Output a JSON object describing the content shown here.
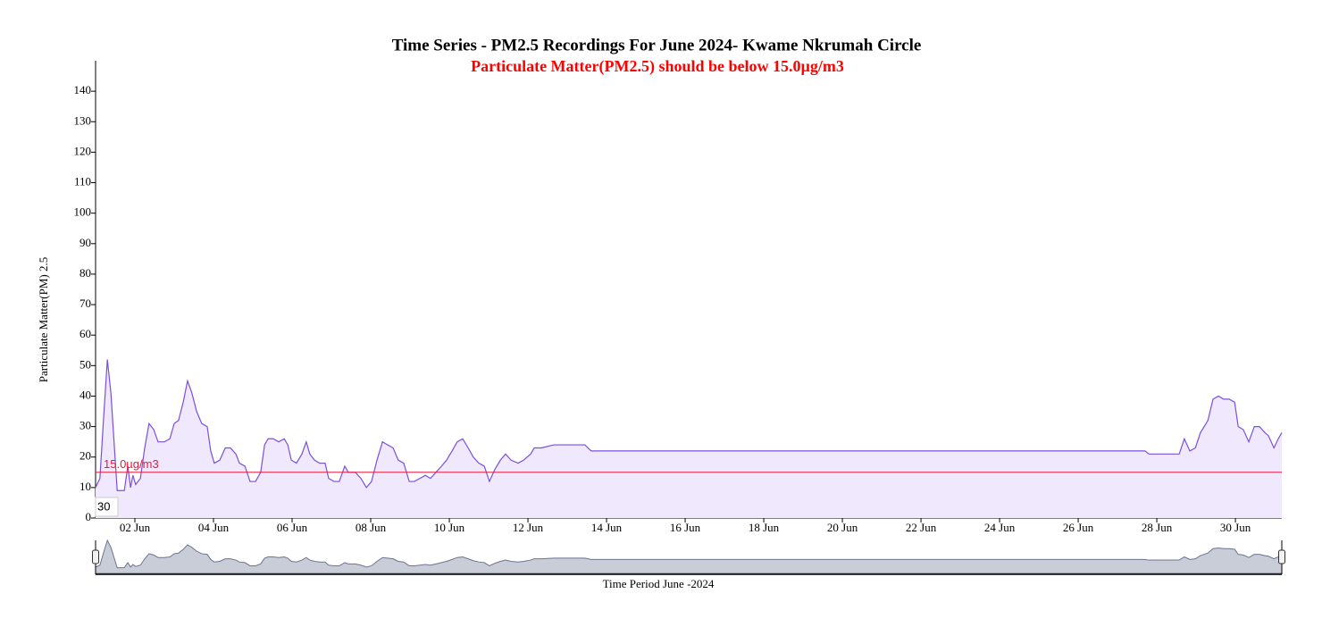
{
  "chart_data": {
    "type": "line",
    "title": "Time Series - PM2.5 Recordings For June 2024- Kwame Nkrumah Circle",
    "subtitle": "Particulate Matter(PM2.5) should be below 15.0µg/m3",
    "subtitle_color": "#ff0000",
    "x_label": "Time Period June -2024",
    "y_label": "Particulate Matter(PM) 2.5",
    "annotation": "30",
    "color": "#7b4ee0",
    "fill": "#f0e9fd",
    "x": [
      1.0,
      1.11,
      1.2,
      1.3,
      1.39,
      1.48,
      1.55,
      1.64,
      1.73,
      1.82,
      1.89,
      1.95,
      2.02,
      2.14,
      2.25,
      2.36,
      2.48,
      2.59,
      2.75,
      2.89,
      3.0,
      3.11,
      3.23,
      3.34,
      3.45,
      3.57,
      3.7,
      3.84,
      3.93,
      4.02,
      4.16,
      4.3,
      4.43,
      4.57,
      4.66,
      4.8,
      4.93,
      5.07,
      5.2,
      5.3,
      5.39,
      5.52,
      5.66,
      5.8,
      5.89,
      5.98,
      6.11,
      6.25,
      6.36,
      6.45,
      6.57,
      6.7,
      6.84,
      6.93,
      7.07,
      7.2,
      7.34,
      7.43,
      7.61,
      7.75,
      7.89,
      8.02,
      8.16,
      8.3,
      8.43,
      8.57,
      8.7,
      8.84,
      8.98,
      9.11,
      9.25,
      9.39,
      9.52,
      9.66,
      9.8,
      9.93,
      10.07,
      10.2,
      10.34,
      10.48,
      10.61,
      10.75,
      10.89,
      11.02,
      11.16,
      11.3,
      11.43,
      11.57,
      11.75,
      11.89,
      12.07,
      12.16,
      12.34,
      12.66,
      13.11,
      13.45,
      13.61,
      14.48,
      16.75,
      19.02,
      21.3,
      23.57,
      25.84,
      27.7,
      27.8,
      28.57,
      28.7,
      28.84,
      28.98,
      29.11,
      29.3,
      29.43,
      29.57,
      29.7,
      29.84,
      29.98,
      30.07,
      30.2,
      30.34,
      30.48,
      30.61,
      30.75,
      30.84,
      30.98,
      31.09,
      31.18
    ],
    "values": [
      10,
      13,
      32,
      52,
      41,
      23,
      9,
      9,
      9,
      17,
      10,
      14,
      11,
      13,
      23,
      31,
      29,
      25,
      25,
      26,
      31,
      32,
      38,
      45,
      41,
      35,
      31,
      30,
      22,
      18,
      19,
      23,
      23,
      21,
      18,
      17,
      12,
      12,
      15,
      24,
      26,
      26,
      25,
      26,
      24,
      19,
      18,
      21,
      25,
      21,
      19,
      18,
      18,
      13,
      12,
      12,
      17,
      15,
      15,
      13,
      10,
      12,
      19,
      25,
      24,
      23,
      19,
      18,
      12,
      12,
      13,
      14,
      13,
      15,
      17,
      19,
      22,
      25,
      26,
      23,
      20,
      18,
      17,
      12,
      16,
      19,
      21,
      19,
      18,
      19,
      21,
      23,
      23,
      24,
      24,
      24,
      22,
      22,
      22,
      22,
      22,
      22,
      22,
      22,
      21,
      21,
      26,
      22,
      23,
      28,
      32,
      39,
      40,
      39,
      39,
      38,
      30,
      29,
      25,
      30,
      30,
      28,
      27,
      23,
      26,
      28
    ],
    "xlim": [
      1,
      31.18
    ],
    "xticks": [
      {
        "value": 2,
        "label": "02 Jun"
      },
      {
        "value": 4,
        "label": "04 Jun"
      },
      {
        "value": 6,
        "label": "06 Jun"
      },
      {
        "value": 8,
        "label": "08 Jun"
      },
      {
        "value": 10,
        "label": "10 Jun"
      },
      {
        "value": 12,
        "label": "12 Jun"
      },
      {
        "value": 14,
        "label": "14 Jun"
      },
      {
        "value": 16,
        "label": "16 Jun"
      },
      {
        "value": 18,
        "label": "18 Jun"
      },
      {
        "value": 20,
        "label": "20 Jun"
      },
      {
        "value": 22,
        "label": "22 Jun"
      },
      {
        "value": 24,
        "label": "24 Jun"
      },
      {
        "value": 26,
        "label": "26 Jun"
      },
      {
        "value": 28,
        "label": "28 Jun"
      },
      {
        "value": 30,
        "label": "30 Jun"
      }
    ],
    "ylim": [
      0,
      150
    ],
    "yticks": [
      0,
      10,
      20,
      30,
      40,
      50,
      60,
      70,
      80,
      90,
      100,
      110,
      120,
      130,
      140
    ],
    "threshold": {
      "value": 15,
      "label": "15.0µg/m3",
      "color": "#e8193c"
    }
  }
}
